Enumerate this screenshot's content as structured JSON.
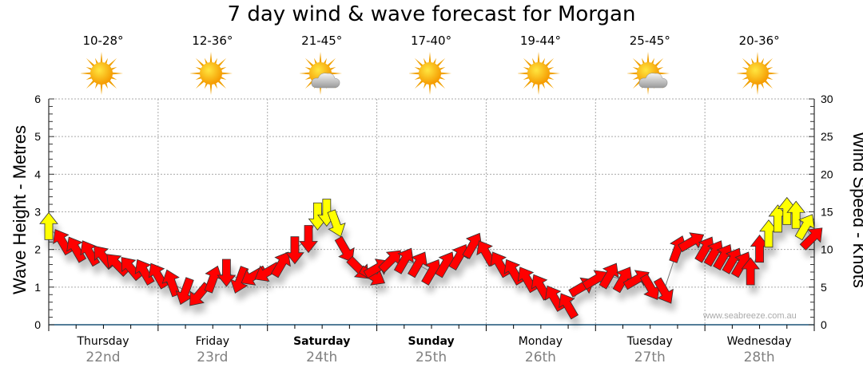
{
  "title": "7 day wind & wave forecast for Morgan",
  "credit": "www.seabreeze.com.au",
  "days": [
    {
      "name": "Thursday",
      "date": "22nd",
      "temp": "10-28°",
      "weather": "sunny",
      "bold": false
    },
    {
      "name": "Friday",
      "date": "23rd",
      "temp": "12-36°",
      "weather": "sunny",
      "bold": false
    },
    {
      "name": "Saturday",
      "date": "24th",
      "temp": "21-45°",
      "weather": "partly-cloudy",
      "bold": true
    },
    {
      "name": "Sunday",
      "date": "25th",
      "temp": "17-40°",
      "weather": "sunny",
      "bold": true
    },
    {
      "name": "Monday",
      "date": "26th",
      "temp": "19-44°",
      "weather": "sunny",
      "bold": false
    },
    {
      "name": "Tuesday",
      "date": "27th",
      "temp": "25-45°",
      "weather": "partly-cloudy",
      "bold": false
    },
    {
      "name": "Wednesday",
      "date": "28th",
      "temp": "20-36°",
      "weather": "sunny",
      "bold": false
    }
  ],
  "colors": {
    "strong": "#ffff00",
    "normal": "#ff0000",
    "axis": "#1a5276",
    "grid": "#aaaaaa"
  },
  "chart_data": {
    "type": "scatter",
    "title": "7 day wind & wave forecast for Morgan",
    "ylabel_left": "Wave Height - Metres",
    "ylabel_right": "Wind Speed - Knots",
    "ylim_left": [
      0,
      6
    ],
    "ylim_right": [
      0,
      30
    ],
    "yticks_left": [
      "0",
      "1",
      "2",
      "3",
      "4",
      "5",
      "6"
    ],
    "yticks_right": [
      "0",
      "5",
      "10",
      "15",
      "20",
      "25",
      "30"
    ],
    "x_unit": "hours from Thursday 00:00",
    "xlim": [
      0,
      168
    ],
    "grid": true,
    "wind_points_format": [
      "hour",
      "knots",
      "direction_deg",
      "color"
    ],
    "wind_points": [
      [
        0,
        13,
        0,
        "y"
      ],
      [
        3,
        11,
        330,
        "r"
      ],
      [
        6,
        10,
        330,
        "r"
      ],
      [
        9,
        9.5,
        330,
        "r"
      ],
      [
        12,
        9,
        320,
        "r"
      ],
      [
        15,
        8,
        315,
        "r"
      ],
      [
        18,
        7.5,
        320,
        "r"
      ],
      [
        21,
        7,
        330,
        "r"
      ],
      [
        24,
        6.5,
        330,
        "r"
      ],
      [
        27,
        5.5,
        340,
        "r"
      ],
      [
        30,
        4.5,
        200,
        "r"
      ],
      [
        33,
        4,
        220,
        "r"
      ],
      [
        36,
        6,
        20,
        "r"
      ],
      [
        39,
        7,
        180,
        "r"
      ],
      [
        42,
        6,
        200,
        "r"
      ],
      [
        45,
        6.5,
        240,
        "r"
      ],
      [
        48,
        7,
        240,
        "r"
      ],
      [
        51,
        8,
        30,
        "r"
      ],
      [
        54,
        10,
        180,
        "r"
      ],
      [
        57,
        11.5,
        180,
        "r"
      ],
      [
        59,
        14.5,
        180,
        "y"
      ],
      [
        61,
        15,
        180,
        "y"
      ],
      [
        63,
        13.5,
        160,
        "y"
      ],
      [
        65,
        10,
        150,
        "r"
      ],
      [
        68,
        7.5,
        135,
        "r"
      ],
      [
        71,
        6.5,
        120,
        "r"
      ],
      [
        72,
        7.5,
        60,
        "r"
      ],
      [
        75,
        8.5,
        45,
        "r"
      ],
      [
        78,
        8.5,
        30,
        "r"
      ],
      [
        81,
        8,
        30,
        "r"
      ],
      [
        84,
        7,
        30,
        "r"
      ],
      [
        87,
        8,
        30,
        "r"
      ],
      [
        90,
        9,
        30,
        "r"
      ],
      [
        93,
        10.5,
        30,
        "r"
      ],
      [
        96,
        9.5,
        330,
        "r"
      ],
      [
        99,
        8,
        330,
        "r"
      ],
      [
        102,
        7,
        330,
        "r"
      ],
      [
        105,
        6,
        330,
        "r"
      ],
      [
        108,
        5,
        330,
        "r"
      ],
      [
        111,
        3.5,
        330,
        "r"
      ],
      [
        114,
        2.5,
        330,
        "r"
      ],
      [
        117,
        5,
        60,
        "r"
      ],
      [
        120,
        6,
        60,
        "r"
      ],
      [
        123,
        6.5,
        30,
        "r"
      ],
      [
        126,
        6,
        30,
        "r"
      ],
      [
        129,
        6,
        60,
        "r"
      ],
      [
        132,
        5,
        150,
        "r"
      ],
      [
        135,
        4.5,
        150,
        "r"
      ],
      [
        138,
        10,
        20,
        "r"
      ],
      [
        141,
        11,
        60,
        "r"
      ],
      [
        144,
        10,
        30,
        "r"
      ],
      [
        146,
        9.5,
        30,
        "r"
      ],
      [
        148,
        9,
        30,
        "r"
      ],
      [
        150,
        8.5,
        30,
        "r"
      ],
      [
        152,
        8,
        30,
        "r"
      ],
      [
        154,
        7,
        0,
        "r"
      ],
      [
        156,
        10,
        0,
        "r"
      ],
      [
        158,
        12,
        0,
        "y"
      ],
      [
        160,
        14,
        0,
        "y"
      ],
      [
        162,
        15,
        0,
        "y"
      ],
      [
        164,
        14.5,
        0,
        "y"
      ],
      [
        166,
        13,
        30,
        "y"
      ],
      [
        167.5,
        11.5,
        45,
        "r"
      ]
    ]
  }
}
